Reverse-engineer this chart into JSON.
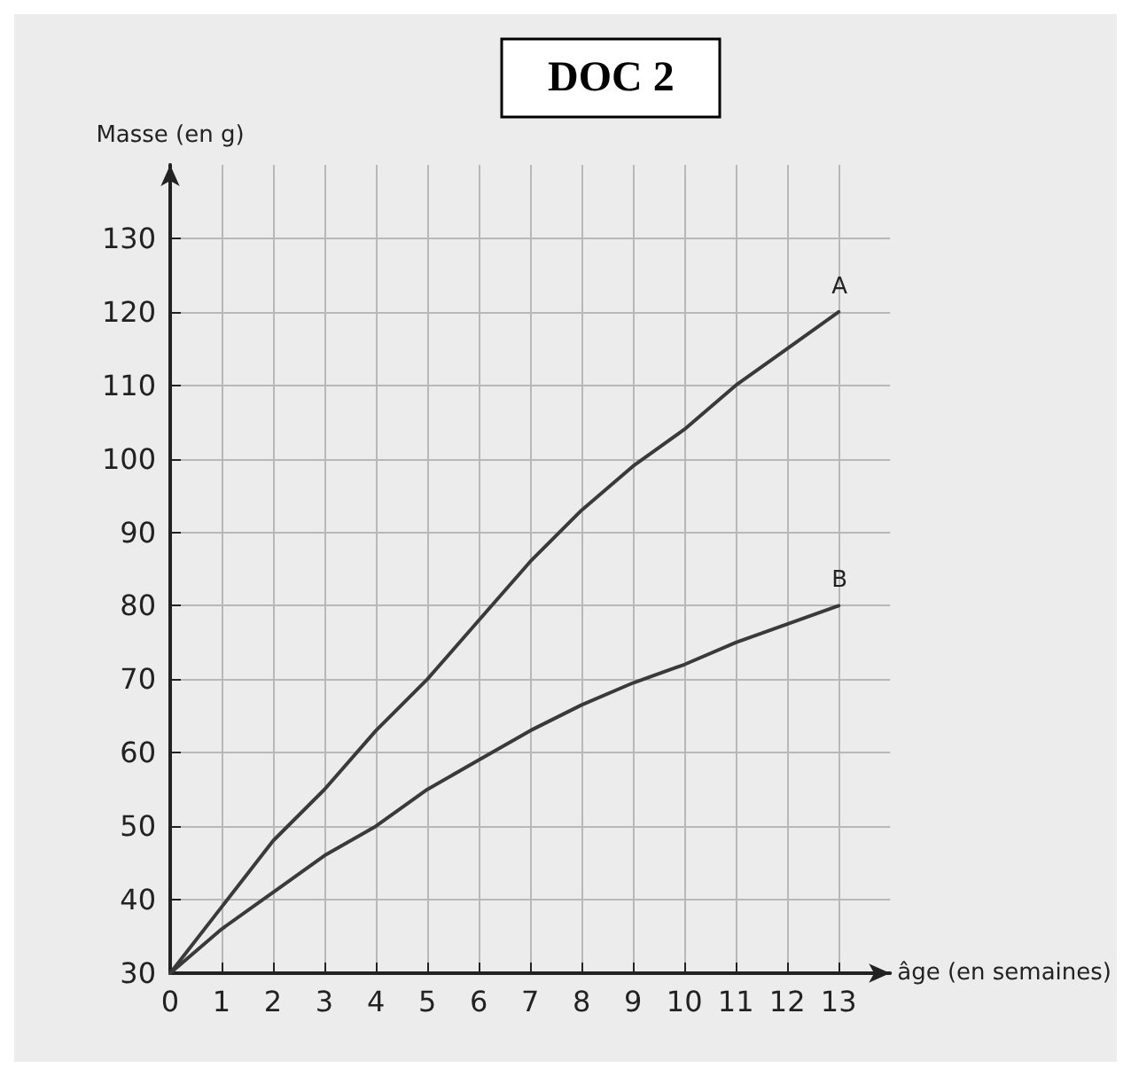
{
  "chart_data": {
    "type": "line",
    "title": "DOC 2",
    "xlabel": "âge (en semaines)",
    "ylabel": "Masse (en g)",
    "x": [
      0,
      1,
      2,
      3,
      4,
      5,
      6,
      7,
      8,
      9,
      10,
      11,
      12,
      13
    ],
    "series": [
      {
        "name": "A",
        "color": "#3a3a3a",
        "values": [
          30,
          39,
          48,
          55,
          63,
          70,
          78,
          86,
          93,
          99,
          104,
          110,
          115,
          120
        ]
      },
      {
        "name": "B",
        "color": "#3a3a3a",
        "values": [
          30,
          36,
          41,
          46,
          50,
          55,
          59,
          63,
          66.5,
          69.5,
          72,
          75,
          77.5,
          80
        ]
      }
    ],
    "xlim": [
      0,
      14
    ],
    "xticks": [
      0,
      1,
      2,
      3,
      4,
      5,
      6,
      7,
      8,
      9,
      10,
      11,
      12,
      13
    ],
    "ylim": [
      30,
      140
    ],
    "yticks": [
      30,
      40,
      50,
      60,
      70,
      80,
      90,
      100,
      110,
      120,
      130
    ],
    "grid": true,
    "legend": false,
    "marker": "none",
    "line_style": "solid"
  }
}
